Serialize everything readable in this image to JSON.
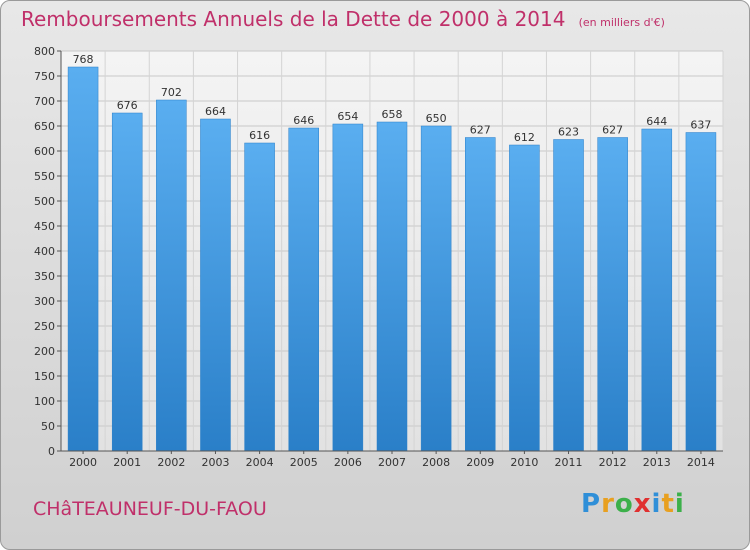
{
  "title": "Remboursements Annuels de la Dette de 2000 à 2014",
  "unit": "(en milliers d'€)",
  "commune": "CHâTEAUNEUF-DU-FAOU",
  "brand": {
    "letters": [
      "P",
      "r",
      "o",
      "x",
      "i",
      "t",
      "i"
    ],
    "colors": [
      "#2f8fd8",
      "#e8a020",
      "#3cb04a",
      "#e03030",
      "#2f8fd8",
      "#e8a020",
      "#3cb04a"
    ]
  },
  "colors": {
    "bar": "#3d98de",
    "title": "#c0306a"
  },
  "chart_data": {
    "type": "bar",
    "categories": [
      "2000",
      "2001",
      "2002",
      "2003",
      "2004",
      "2005",
      "2006",
      "2007",
      "2008",
      "2009",
      "2010",
      "2011",
      "2012",
      "2013",
      "2014"
    ],
    "values": [
      768,
      676,
      702,
      664,
      616,
      646,
      654,
      658,
      650,
      627,
      612,
      623,
      627,
      644,
      637
    ],
    "title": "Remboursements Annuels de la Dette de 2000 à 2014",
    "xlabel": "",
    "ylabel": "",
    "ylim": [
      0,
      800
    ],
    "yticks": [
      0,
      50,
      100,
      150,
      200,
      250,
      300,
      350,
      400,
      450,
      500,
      550,
      600,
      650,
      700,
      750,
      800
    ],
    "grid": true,
    "legend": "none"
  }
}
